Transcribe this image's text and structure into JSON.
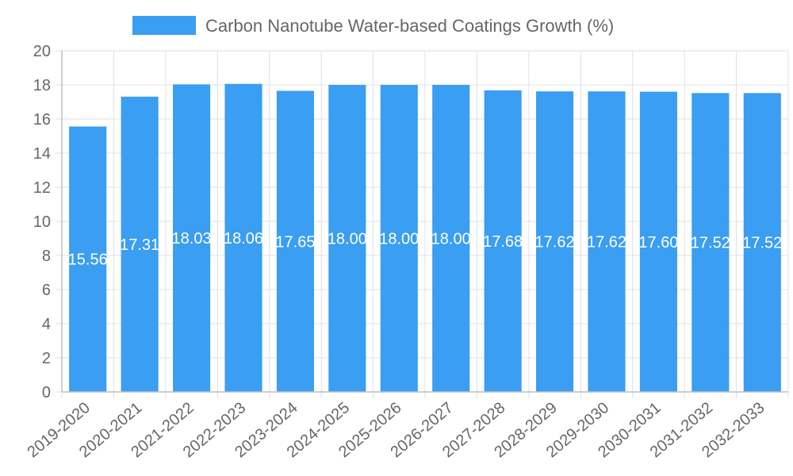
{
  "chart_data": {
    "type": "bar",
    "categories": [
      "2019-2020",
      "2020-2021",
      "2021-2022",
      "2022-2023",
      "2023-2024",
      "2024-2025",
      "2025-2026",
      "2026-2027",
      "2027-2028",
      "2028-2029",
      "2029-2030",
      "2030-2031",
      "2031-2032",
      "2032-2033"
    ],
    "series": [
      {
        "name": "Carbon Nanotube Water-based Coatings Growth (%)",
        "values": [
          15.56,
          17.31,
          18.03,
          18.06,
          17.65,
          18.0,
          18.0,
          18.0,
          17.68,
          17.62,
          17.62,
          17.6,
          17.52,
          17.52
        ],
        "labels": [
          "15.56",
          "17.31",
          "18.03",
          "18.06",
          "17.65",
          "18.00",
          "18.00",
          "18.00",
          "17.68",
          "17.62",
          "17.62",
          "17.60",
          "17.52",
          "17.52"
        ],
        "color": "#3a9ef2"
      }
    ],
    "ylim": [
      0,
      20
    ],
    "yticks": [
      0,
      2,
      4,
      6,
      8,
      10,
      12,
      14,
      16,
      18,
      20
    ],
    "grid": true,
    "legend_position": "top-center",
    "xlabel": "",
    "ylabel": ""
  },
  "colors": {
    "bar": "#3a9ef2",
    "grid": "#e0e0e0",
    "axis": "#bfbfbf",
    "text": "#666666"
  }
}
